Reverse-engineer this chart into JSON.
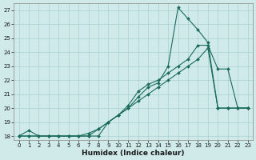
{
  "xlabel": "Humidex (Indice chaleur)",
  "bg_color": "#d0eaea",
  "grid_color": "#a8d0d0",
  "line_color": "#1a6b5a",
  "xlim": [
    -0.5,
    23.5
  ],
  "ylim": [
    17.7,
    27.5
  ],
  "xticks": [
    0,
    1,
    2,
    3,
    4,
    5,
    6,
    7,
    8,
    9,
    10,
    11,
    12,
    13,
    14,
    15,
    16,
    17,
    18,
    19,
    20,
    21,
    22,
    23
  ],
  "yticks": [
    18,
    19,
    20,
    21,
    22,
    23,
    24,
    25,
    26,
    27
  ],
  "line1_x": [
    0,
    1,
    2,
    3,
    4,
    5,
    6,
    7,
    8,
    9,
    10,
    11,
    12,
    13,
    14,
    15,
    16,
    17,
    18,
    19,
    20,
    21,
    22,
    23
  ],
  "line1_y": [
    18.0,
    18.4,
    18.0,
    18.0,
    18.0,
    18.0,
    18.0,
    18.0,
    18.0,
    19.0,
    19.5,
    20.0,
    20.8,
    21.5,
    21.8,
    23.0,
    27.2,
    26.4,
    25.6,
    24.7,
    20.0,
    20.0,
    20.0,
    20.0
  ],
  "line2_x": [
    0,
    1,
    2,
    3,
    4,
    5,
    6,
    7,
    8,
    9,
    10,
    11,
    12,
    13,
    14,
    15,
    16,
    17,
    18,
    19,
    20,
    21,
    22,
    23
  ],
  "line2_y": [
    18.0,
    18.0,
    18.0,
    18.0,
    18.0,
    18.0,
    18.0,
    18.0,
    18.5,
    19.0,
    19.5,
    20.0,
    20.5,
    21.0,
    21.5,
    22.0,
    22.5,
    23.0,
    23.5,
    24.3,
    20.0,
    20.0,
    20.0,
    20.0
  ],
  "line3_x": [
    0,
    1,
    2,
    3,
    4,
    5,
    6,
    7,
    8,
    9,
    10,
    11,
    12,
    13,
    14,
    15,
    16,
    17,
    18,
    19,
    20,
    21,
    22,
    23
  ],
  "line3_y": [
    18.0,
    18.0,
    18.0,
    18.0,
    18.0,
    18.0,
    18.0,
    18.2,
    18.5,
    19.0,
    19.5,
    20.2,
    21.2,
    21.7,
    22.0,
    22.5,
    23.0,
    23.5,
    24.5,
    24.5,
    22.8,
    22.8,
    20.0,
    20.0
  ],
  "marker": "D",
  "markersize": 2.0,
  "linewidth": 0.8,
  "tick_fontsize": 5.0,
  "xlabel_fontsize": 6.5
}
